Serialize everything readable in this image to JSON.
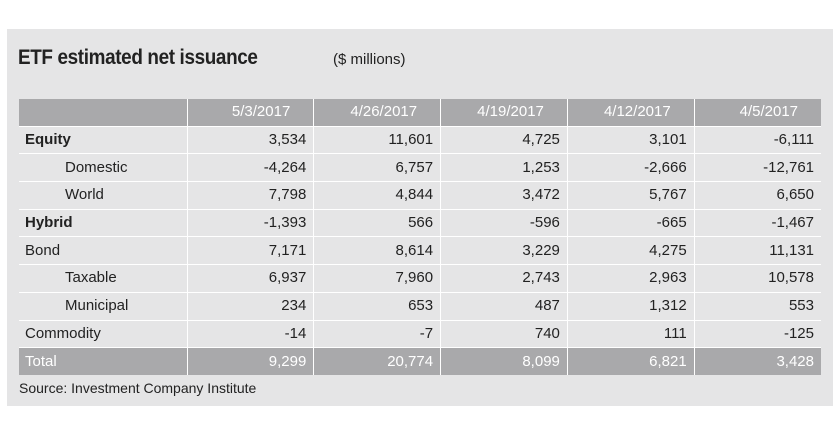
{
  "title": "ETF estimated net issuance",
  "units": "($ millions)",
  "table": {
    "headers": [
      "",
      "5/3/2017",
      "4/26/2017",
      "4/19/2017",
      "4/12/2017",
      "4/5/2017"
    ],
    "rows": [
      {
        "label": "Equity",
        "bold": true,
        "indent": 0,
        "values": [
          "3,534",
          "11,601",
          "4,725",
          "3,101",
          "-6,111"
        ]
      },
      {
        "label": "Domestic",
        "bold": false,
        "indent": 1,
        "values": [
          "-4,264",
          "6,757",
          "1,253",
          "-2,666",
          "-12,761"
        ]
      },
      {
        "label": "World",
        "bold": false,
        "indent": 1,
        "values": [
          "7,798",
          "4,844",
          "3,472",
          "5,767",
          "6,650"
        ]
      },
      {
        "label": "Hybrid",
        "bold": true,
        "indent": 0,
        "values": [
          "-1,393",
          "566",
          "-596",
          "-665",
          "-1,467"
        ]
      },
      {
        "label": "Bond",
        "bold": false,
        "indent": 0,
        "values": [
          "7,171",
          "8,614",
          "3,229",
          "4,275",
          "11,131"
        ]
      },
      {
        "label": "Taxable",
        "bold": false,
        "indent": 1,
        "values": [
          "6,937",
          "7,960",
          "2,743",
          "2,963",
          "10,578"
        ]
      },
      {
        "label": "Municipal",
        "bold": false,
        "indent": 1,
        "values": [
          "234",
          "653",
          "487",
          "1,312",
          "553"
        ]
      },
      {
        "label": "Commodity",
        "bold": false,
        "indent": 0,
        "values": [
          "-14",
          "-7",
          "740",
          "111",
          "-125"
        ]
      }
    ],
    "total": {
      "label": "Total",
      "values": [
        "9,299",
        "20,774",
        "8,099",
        "6,821",
        "3,428"
      ]
    }
  },
  "source": "Source: Investment Company Institute",
  "colors": {
    "panel_bg": "#e5e5e6",
    "header_bg": "#a9a9ab",
    "header_text": "#ffffff",
    "body_text": "#222222"
  }
}
